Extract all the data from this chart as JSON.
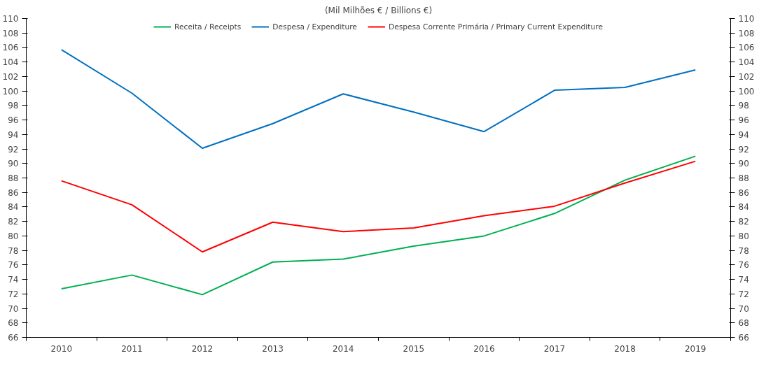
{
  "chart_data": {
    "type": "line",
    "subtitle": "(Mil Milhões € / Billions €)",
    "categories": [
      "2010",
      "2011",
      "2012",
      "2013",
      "2014",
      "2015",
      "2016",
      "2017",
      "2018",
      "2019"
    ],
    "series": [
      {
        "name": "Receita / Receipts",
        "color": "#00b050",
        "values": [
          72.7,
          74.6,
          71.9,
          76.4,
          76.8,
          78.6,
          80.0,
          83.1,
          87.7,
          91.0
        ]
      },
      {
        "name": "Despesa / Expenditure",
        "color": "#0070c0",
        "values": [
          105.7,
          99.7,
          92.1,
          95.5,
          99.6,
          97.1,
          94.4,
          100.1,
          100.5,
          102.9
        ]
      },
      {
        "name": "Despesa Corrente Primária / Primary Current Expenditure",
        "color": "#ff0000",
        "values": [
          87.6,
          84.3,
          77.8,
          81.9,
          80.6,
          81.1,
          82.8,
          84.1,
          87.3,
          90.3
        ]
      }
    ],
    "ylim": [
      66,
      110
    ],
    "yticks": [
      66,
      68,
      70,
      72,
      74,
      76,
      78,
      80,
      82,
      84,
      86,
      88,
      90,
      92,
      94,
      96,
      98,
      100,
      102,
      104,
      106,
      108,
      110
    ],
    "y2lim": [
      66,
      110
    ],
    "y2ticks": [
      66,
      68,
      70,
      72,
      74,
      76,
      78,
      80,
      82,
      84,
      86,
      88,
      90,
      92,
      94,
      96,
      98,
      100,
      102,
      104,
      106,
      108,
      110
    ],
    "grid": false,
    "legend": "top",
    "marker": "none",
    "line_style": "solid"
  }
}
